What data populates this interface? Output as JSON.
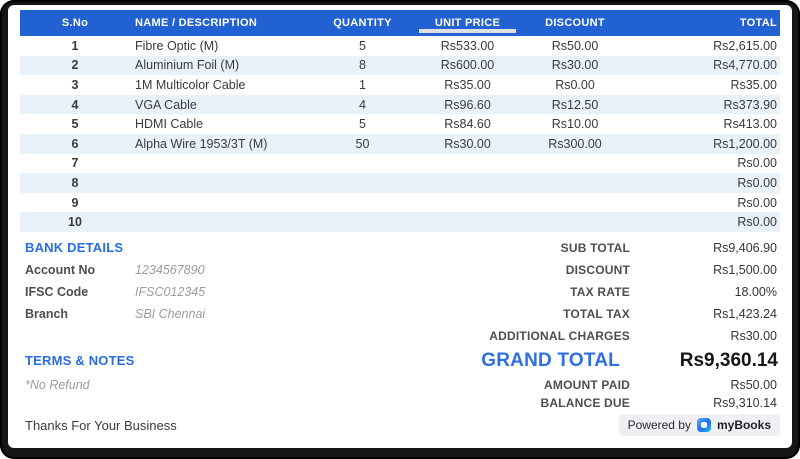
{
  "colors": {
    "header_blue": "#2161d2",
    "row_alt_blue": "#e9f1fb",
    "heading_blue": "#2a6de0",
    "grand_total_blue": "#2e6fe3",
    "frame_dark": "#161616"
  },
  "table": {
    "columns": [
      "S.No",
      "NAME / DESCRIPTION",
      "QUANTITY",
      "UNIT PRICE",
      "DISCOUNT",
      "TOTAL"
    ],
    "rows": [
      {
        "sno": "1",
        "name": "Fibre Optic (M)",
        "qty": "5",
        "unit_price": "Rs533.00",
        "discount": "Rs50.00",
        "total": "Rs2,615.00"
      },
      {
        "sno": "2",
        "name": "Aluminium Foil (M)",
        "qty": "8",
        "unit_price": "Rs600.00",
        "discount": "Rs30.00",
        "total": "Rs4,770.00"
      },
      {
        "sno": "3",
        "name": "1M Multicolor Cable",
        "qty": "1",
        "unit_price": "Rs35.00",
        "discount": "Rs0.00",
        "total": "Rs35.00"
      },
      {
        "sno": "4",
        "name": "VGA Cable",
        "qty": "4",
        "unit_price": "Rs96.60",
        "discount": "Rs12.50",
        "total": "Rs373.90"
      },
      {
        "sno": "5",
        "name": "HDMI Cable",
        "qty": "5",
        "unit_price": "Rs84.60",
        "discount": "Rs10.00",
        "total": "Rs413.00"
      },
      {
        "sno": "6",
        "name": "Alpha Wire 1953/3T (M)",
        "qty": "50",
        "unit_price": "Rs30.00",
        "discount": "Rs300.00",
        "total": "Rs1,200.00"
      },
      {
        "sno": "7",
        "name": "",
        "qty": "",
        "unit_price": "",
        "discount": "",
        "total": "Rs0.00"
      },
      {
        "sno": "8",
        "name": "",
        "qty": "",
        "unit_price": "",
        "discount": "",
        "total": "Rs0.00"
      },
      {
        "sno": "9",
        "name": "",
        "qty": "",
        "unit_price": "",
        "discount": "",
        "total": "Rs0.00"
      },
      {
        "sno": "10",
        "name": "",
        "qty": "",
        "unit_price": "",
        "discount": "",
        "total": "Rs0.00"
      }
    ]
  },
  "bank": {
    "heading": "BANK DETAILS",
    "fields": [
      {
        "label": "Account No",
        "value": "1234567890"
      },
      {
        "label": "IFSC Code",
        "value": "IFSC012345"
      },
      {
        "label": "Branch",
        "value": "SBI Chennai"
      }
    ]
  },
  "summary": {
    "rows": [
      {
        "label": "SUB TOTAL",
        "value": "Rs9,406.90"
      },
      {
        "label": "DISCOUNT",
        "value": "Rs1,500.00"
      },
      {
        "label": "TAX RATE",
        "value": "18.00%"
      },
      {
        "label": "TOTAL TAX",
        "value": "Rs1,423.24"
      },
      {
        "label": "ADDITIONAL CHARGES",
        "value": "Rs30.00"
      }
    ]
  },
  "grand_total": {
    "label": "GRAND TOTAL",
    "value": "Rs9,360.14"
  },
  "post_rows": [
    {
      "label": "AMOUNT PAID",
      "value": "Rs50.00"
    },
    {
      "label": "BALANCE DUE",
      "value": "Rs9,310.14"
    }
  ],
  "terms": {
    "heading": "TERMS & NOTES",
    "note": "*No Refund",
    "thanks": "Thanks For Your Business"
  },
  "badge": {
    "powered_by": "Powered by",
    "brand": "myBooks"
  }
}
